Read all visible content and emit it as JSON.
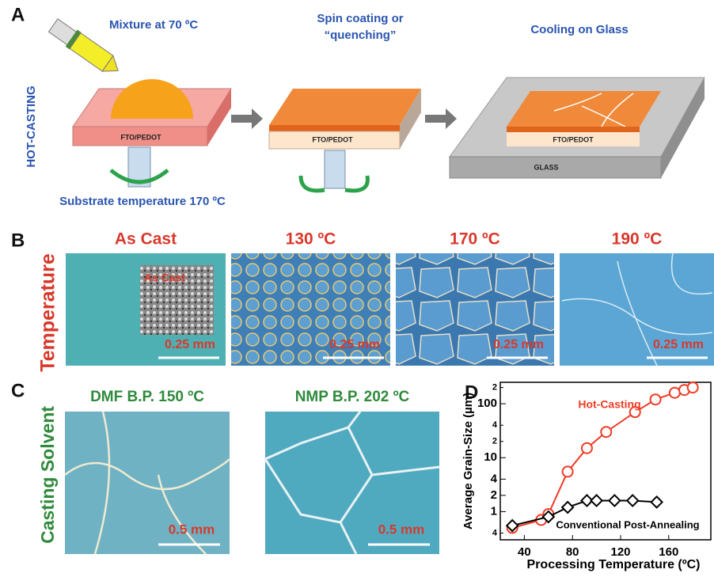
{
  "panel_a": {
    "label": "A",
    "side_label": "HOT-CASTING",
    "caption_mixture": "Mixture at 70 ºC",
    "caption_spin": [
      "Spin coating or",
      "“quenching”"
    ],
    "caption_cooling": "Cooling on Glass",
    "substrate_labels": [
      "FTO/PEDOT",
      "FTO/PEDOT",
      "FTO/PEDOT"
    ],
    "glass_label": "GLASS",
    "caption_temperature": "Substrate temperature 170 ºC"
  },
  "panel_b": {
    "label": "B",
    "side_label": "Temperature",
    "inset_label": "As Cast",
    "images": [
      {
        "title": "As Cast",
        "scale": "0.25 mm"
      },
      {
        "title": "130 ºC",
        "scale": "0.25 mm"
      },
      {
        "title": "170 ºC",
        "scale": "0.25 mm"
      },
      {
        "title": "190 ºC",
        "scale": "0.25 mm"
      }
    ]
  },
  "panel_c": {
    "label": "C",
    "side_label": "Casting Solvent",
    "images": [
      {
        "title": "DMF B.P. 150 ºC",
        "scale": "0.5 mm"
      },
      {
        "title": "NMP B.P. 202 ºC",
        "scale": "0.5 mm"
      }
    ]
  },
  "chart_data": {
    "type": "line",
    "panel_label": "D",
    "xlabel": "Processing Temperature (ºC)",
    "ylabel": "Average Grain-Size (µm)",
    "xlim": [
      20,
      195
    ],
    "xticks": [
      40,
      80,
      120,
      160
    ],
    "ylim": [
      0.3,
      250
    ],
    "log_y": true,
    "yticks": [
      {
        "value": 0.4,
        "label": "4"
      },
      1,
      2,
      4,
      10,
      {
        "value": 20,
        "label": "2"
      },
      {
        "value": 40,
        "label": "4"
      },
      100,
      {
        "value": 200,
        "label": "2"
      }
    ],
    "series": [
      {
        "name": "Hot-Casting",
        "color": "#ef3b24",
        "marker": "circle",
        "x": [
          30,
          54,
          60,
          76,
          92,
          108,
          132,
          149,
          165,
          173,
          180
        ],
        "values": [
          0.5,
          0.7,
          0.9,
          5.5,
          15,
          30,
          70,
          120,
          160,
          180,
          200
        ]
      },
      {
        "name": "Conventional Post-Annealing",
        "color": "#000000",
        "marker": "diamond",
        "x": [
          30,
          60,
          76,
          92,
          100,
          115,
          130,
          150
        ],
        "values": [
          0.55,
          0.8,
          1.2,
          1.6,
          1.6,
          1.6,
          1.6,
          1.5
        ]
      }
    ]
  }
}
